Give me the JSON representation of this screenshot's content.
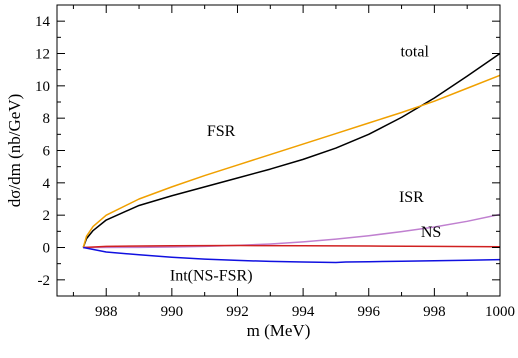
{
  "chart_data": {
    "type": "line",
    "xlabel": "m (MeV)",
    "ylabel": "dσ/dm (nb/GeV)",
    "xlim": [
      986.5,
      1000
    ],
    "ylim": [
      -3,
      15
    ],
    "x_ticks": [
      988,
      990,
      992,
      994,
      996,
      998,
      1000
    ],
    "x_tick_labels": [
      "988",
      "990",
      "992",
      "994",
      "996",
      "998",
      "1000"
    ],
    "y_ticks": [
      -2,
      0,
      2,
      4,
      6,
      8,
      10,
      12,
      14
    ],
    "y_tick_labels": [
      "-2",
      "0",
      "2",
      "4",
      "6",
      "8",
      "10",
      "12",
      "14"
    ],
    "grid": false,
    "series": [
      {
        "name": "total",
        "color": "#000000",
        "x": [
          987.3,
          987.4,
          987.6,
          988,
          989,
          990,
          991,
          992,
          993,
          994,
          995,
          996,
          997,
          998,
          999,
          1000
        ],
        "y": [
          0,
          0.55,
          1.05,
          1.7,
          2.6,
          3.2,
          3.75,
          4.3,
          4.85,
          5.45,
          6.15,
          7.0,
          8.05,
          9.25,
          10.6,
          12.0
        ]
      },
      {
        "name": "FSR",
        "color": "#f0a000",
        "x": [
          987.3,
          987.4,
          987.6,
          988,
          989,
          990,
          991,
          992,
          993,
          994,
          995,
          996,
          997,
          998,
          999,
          1000
        ],
        "y": [
          0,
          0.7,
          1.3,
          2.0,
          3.0,
          3.75,
          4.45,
          5.1,
          5.75,
          6.4,
          7.05,
          7.7,
          8.35,
          9.05,
          9.85,
          10.65
        ]
      },
      {
        "name": "ISR",
        "color": "#c080d0",
        "x": [
          987.3,
          989,
          990,
          991,
          992,
          993,
          994,
          995,
          996,
          997,
          998,
          999,
          1000
        ],
        "y": [
          0,
          0.01,
          0.03,
          0.07,
          0.13,
          0.22,
          0.35,
          0.52,
          0.73,
          0.98,
          1.27,
          1.62,
          2.05
        ]
      },
      {
        "name": "NS",
        "color": "#d02020",
        "x": [
          987.3,
          988,
          990,
          992,
          994,
          996,
          998,
          1000
        ],
        "y": [
          0,
          0.07,
          0.11,
          0.12,
          0.11,
          0.09,
          0.07,
          0.05
        ]
      },
      {
        "name": "Int(NS-FSR)",
        "color": "#1010e0",
        "x": [
          987.3,
          988,
          989,
          990,
          991,
          992,
          993,
          994,
          995,
          995.3,
          996,
          997,
          998,
          999,
          1000
        ],
        "y": [
          0,
          -0.28,
          -0.45,
          -0.6,
          -0.72,
          -0.8,
          -0.86,
          -0.9,
          -0.93,
          -0.9,
          -0.88,
          -0.85,
          -0.82,
          -0.79,
          -0.75
        ]
      }
    ],
    "annotations": [
      {
        "text": "total",
        "x": 997.4,
        "y": 11.8
      },
      {
        "text": "FSR",
        "x": 991.5,
        "y": 6.9
      },
      {
        "text": "ISR",
        "x": 997.3,
        "y": 2.8
      },
      {
        "text": "NS",
        "x": 997.9,
        "y": 0.65
      },
      {
        "text": "Int(NS-FSR)",
        "x": 991.2,
        "y": -2.05
      }
    ]
  }
}
